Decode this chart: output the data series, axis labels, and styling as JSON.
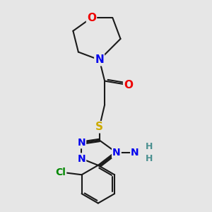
{
  "background_color": "#e6e6e6",
  "bond_color": "#1a1a1a",
  "bond_width": 1.5,
  "atom_colors": {
    "N": "#0000ee",
    "O": "#ee0000",
    "S": "#ccaa00",
    "Cl": "#008800",
    "C": "#1a1a1a",
    "H": "#4a9090"
  },
  "font_size": 10
}
